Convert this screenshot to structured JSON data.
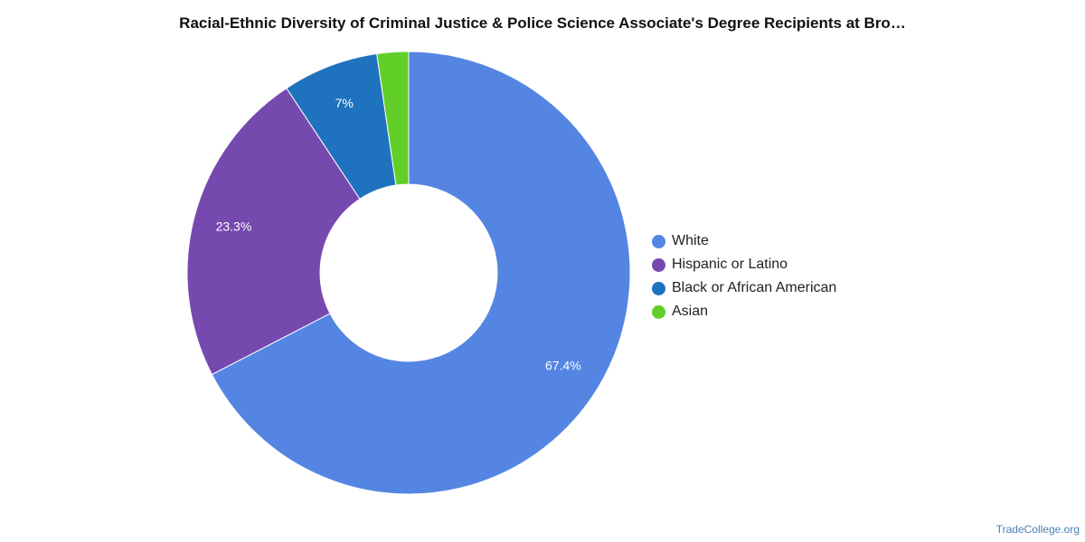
{
  "chart_data": {
    "type": "pie",
    "title": "Racial-Ethnic Diversity of Criminal Justice & Police Science Associate's Degree Recipients at Bro…",
    "donut": true,
    "legend_position": "right",
    "slices": [
      {
        "label": "White",
        "value": 67.4,
        "value_label": "67.4%",
        "color": "#5485E2"
      },
      {
        "label": "Hispanic or Latino",
        "value": 23.3,
        "value_label": "23.3%",
        "color": "#7649AF"
      },
      {
        "label": "Black or African American",
        "value": 7.0,
        "value_label": "7%",
        "color": "#1F72BD"
      },
      {
        "label": "Asian",
        "value": 2.3,
        "value_label": "",
        "color": "#62CF28"
      }
    ]
  },
  "footer": {
    "credit": "TradeCollege.org"
  }
}
